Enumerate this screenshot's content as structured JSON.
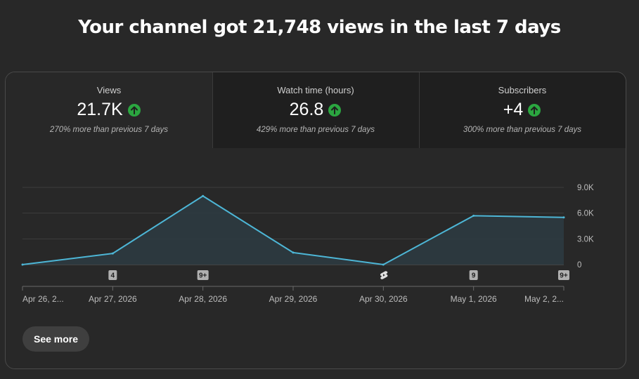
{
  "headline": "Your channel got 21,748 views in the last 7 days",
  "tabs": [
    {
      "label": "Views",
      "value": "21.7K",
      "comparison": "270% more than previous 7 days",
      "trend_icon": "arrow-up-circle-icon",
      "active": true
    },
    {
      "label": "Watch time (hours)",
      "value": "26.8",
      "comparison": "429% more than previous 7 days",
      "trend_icon": "arrow-up-circle-icon",
      "active": false
    },
    {
      "label": "Subscribers",
      "value": "+4",
      "comparison": "300% more than previous 7 days",
      "trend_icon": "arrow-up-circle-icon",
      "active": false
    }
  ],
  "colors": {
    "background": "#282828",
    "tab_inactive": "#1f1f1f",
    "line": "#4db6d6",
    "area": "#2c3a40",
    "trend_up": "#2ba640"
  },
  "chart_data": {
    "type": "area",
    "x": [
      "Apr 26, 2...",
      "Apr 27, 2026",
      "Apr 28, 2026",
      "Apr 29, 2026",
      "Apr 30, 2026",
      "May 1, 2026",
      "May 2, 2..."
    ],
    "series": [
      {
        "values": [
          0,
          1300,
          8000,
          1400,
          0,
          5700,
          5500
        ]
      }
    ],
    "y_ticks": [
      "9.0K",
      "6.0K",
      "3.0K",
      "0"
    ],
    "y_tick_values": [
      9000,
      6000,
      3000,
      0
    ],
    "ylim": [
      0,
      9000
    ],
    "grid": true,
    "markers": [
      {
        "x_index": 1,
        "label": "4"
      },
      {
        "x_index": 2,
        "label": "9+"
      },
      {
        "x_index": 4,
        "label": "",
        "icon": "shorts-icon"
      },
      {
        "x_index": 5,
        "label": "9"
      },
      {
        "x_index": 6,
        "label": "9+"
      }
    ]
  },
  "see_more_label": "See more"
}
